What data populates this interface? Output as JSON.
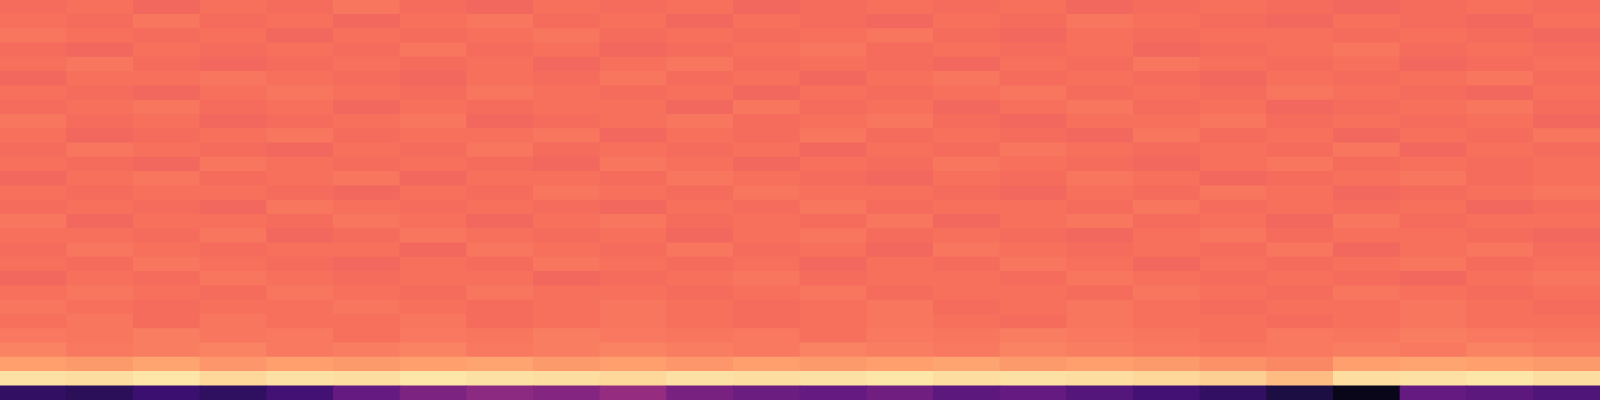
{
  "chart_data": {
    "type": "heatmap",
    "tick_labels": false,
    "grid": false,
    "cells": [
      [
        0.69,
        0.7,
        0.68,
        0.7,
        0.69,
        0.71,
        0.69,
        0.68,
        0.7,
        0.69,
        0.7,
        0.68,
        0.69,
        0.7,
        0.69,
        0.7,
        0.68,
        0.69,
        0.7,
        0.69,
        0.68,
        0.69,
        0.7,
        0.69
      ],
      [
        0.7,
        0.69,
        0.71,
        0.69,
        0.7,
        0.68,
        0.7,
        0.71,
        0.69,
        0.7,
        0.68,
        0.7,
        0.69,
        0.68,
        0.7,
        0.69,
        0.71,
        0.7,
        0.69,
        0.68,
        0.7,
        0.69,
        0.68,
        0.7
      ],
      [
        0.71,
        0.7,
        0.69,
        0.7,
        0.68,
        0.7,
        0.69,
        0.7,
        0.71,
        0.69,
        0.7,
        0.69,
        0.7,
        0.71,
        0.69,
        0.68,
        0.7,
        0.69,
        0.7,
        0.7,
        0.69,
        0.7,
        0.69,
        0.68
      ],
      [
        0.69,
        0.68,
        0.7,
        0.69,
        0.7,
        0.69,
        0.71,
        0.69,
        0.7,
        0.68,
        0.69,
        0.7,
        0.71,
        0.69,
        0.7,
        0.69,
        0.7,
        0.68,
        0.69,
        0.7,
        0.71,
        0.69,
        0.7,
        0.69
      ],
      [
        0.7,
        0.71,
        0.69,
        0.68,
        0.69,
        0.7,
        0.69,
        0.7,
        0.68,
        0.7,
        0.71,
        0.69,
        0.7,
        0.69,
        0.68,
        0.7,
        0.69,
        0.71,
        0.7,
        0.69,
        0.7,
        0.68,
        0.69,
        0.7
      ],
      [
        0.68,
        0.7,
        0.7,
        0.71,
        0.7,
        0.69,
        0.68,
        0.7,
        0.69,
        0.71,
        0.69,
        0.7,
        0.68,
        0.7,
        0.71,
        0.69,
        0.7,
        0.69,
        0.68,
        0.7,
        0.69,
        0.7,
        0.71,
        0.69
      ],
      [
        0.7,
        0.69,
        0.68,
        0.7,
        0.71,
        0.7,
        0.69,
        0.71,
        0.7,
        0.69,
        0.7,
        0.68,
        0.7,
        0.69,
        0.7,
        0.71,
        0.69,
        0.7,
        0.69,
        0.71,
        0.7,
        0.69,
        0.68,
        0.7
      ],
      [
        0.69,
        0.7,
        0.71,
        0.69,
        0.7,
        0.68,
        0.7,
        0.69,
        0.7,
        0.7,
        0.68,
        0.71,
        0.69,
        0.7,
        0.68,
        0.7,
        0.71,
        0.69,
        0.7,
        0.68,
        0.69,
        0.7,
        0.71,
        0.69
      ],
      [
        0.71,
        0.69,
        0.7,
        0.68,
        0.69,
        0.7,
        0.71,
        0.68,
        0.69,
        0.7,
        0.71,
        0.69,
        0.7,
        0.71,
        0.69,
        0.68,
        0.7,
        0.7,
        0.71,
        0.69,
        0.7,
        0.69,
        0.7,
        0.68
      ],
      [
        0.7,
        0.68,
        0.69,
        0.7,
        0.71,
        0.69,
        0.7,
        0.7,
        0.71,
        0.68,
        0.7,
        0.69,
        0.71,
        0.69,
        0.7,
        0.69,
        0.68,
        0.71,
        0.69,
        0.7,
        0.68,
        0.7,
        0.69,
        0.71
      ],
      [
        0.69,
        0.71,
        0.7,
        0.69,
        0.68,
        0.7,
        0.69,
        0.71,
        0.69,
        0.7,
        0.69,
        0.7,
        0.68,
        0.7,
        0.69,
        0.71,
        0.7,
        0.69,
        0.7,
        0.69,
        0.71,
        0.68,
        0.7,
        0.69
      ],
      [
        0.7,
        0.69,
        0.68,
        0.71,
        0.7,
        0.69,
        0.7,
        0.69,
        0.68,
        0.71,
        0.7,
        0.68,
        0.7,
        0.69,
        0.71,
        0.7,
        0.69,
        0.68,
        0.7,
        0.71,
        0.69,
        0.7,
        0.69,
        0.7
      ],
      [
        0.68,
        0.7,
        0.71,
        0.69,
        0.7,
        0.71,
        0.68,
        0.7,
        0.7,
        0.69,
        0.71,
        0.7,
        0.69,
        0.68,
        0.7,
        0.69,
        0.71,
        0.7,
        0.68,
        0.69,
        0.7,
        0.71,
        0.69,
        0.7
      ],
      [
        0.7,
        0.69,
        0.7,
        0.7,
        0.69,
        0.68,
        0.7,
        0.69,
        0.71,
        0.7,
        0.69,
        0.71,
        0.7,
        0.7,
        0.69,
        0.68,
        0.7,
        0.69,
        0.71,
        0.7,
        0.68,
        0.69,
        0.7,
        0.71
      ],
      [
        0.69,
        0.7,
        0.69,
        0.68,
        0.71,
        0.7,
        0.69,
        0.7,
        0.69,
        0.68,
        0.7,
        0.69,
        0.71,
        0.69,
        0.7,
        0.7,
        0.69,
        0.71,
        0.69,
        0.7,
        0.69,
        0.7,
        0.68,
        0.69
      ],
      [
        0.71,
        0.68,
        0.7,
        0.7,
        0.69,
        0.71,
        0.7,
        0.68,
        0.7,
        0.71,
        0.69,
        0.7,
        0.69,
        0.71,
        0.68,
        0.7,
        0.71,
        0.69,
        0.7,
        0.68,
        0.71,
        0.69,
        0.7,
        0.7
      ],
      [
        0.7,
        0.7,
        0.69,
        0.71,
        0.68,
        0.69,
        0.71,
        0.7,
        0.69,
        0.7,
        0.68,
        0.7,
        0.71,
        0.69,
        0.7,
        0.69,
        0.68,
        0.7,
        0.71,
        0.69,
        0.7,
        0.7,
        0.69,
        0.68
      ],
      [
        0.69,
        0.71,
        0.7,
        0.69,
        0.7,
        0.7,
        0.68,
        0.71,
        0.7,
        0.69,
        0.71,
        0.69,
        0.7,
        0.68,
        0.71,
        0.7,
        0.69,
        0.7,
        0.69,
        0.71,
        0.68,
        0.7,
        0.71,
        0.69
      ],
      [
        0.7,
        0.69,
        0.71,
        0.7,
        0.69,
        0.68,
        0.7,
        0.69,
        0.71,
        0.7,
        0.69,
        0.7,
        0.68,
        0.7,
        0.69,
        0.71,
        0.7,
        0.68,
        0.7,
        0.69,
        0.7,
        0.71,
        0.69,
        0.7
      ],
      [
        0.68,
        0.7,
        0.69,
        0.71,
        0.7,
        0.69,
        0.7,
        0.7,
        0.68,
        0.69,
        0.7,
        0.71,
        0.69,
        0.7,
        0.7,
        0.69,
        0.71,
        0.7,
        0.69,
        0.7,
        0.69,
        0.68,
        0.7,
        0.71
      ],
      [
        0.7,
        0.71,
        0.7,
        0.69,
        0.71,
        0.7,
        0.69,
        0.71,
        0.7,
        0.7,
        0.69,
        0.7,
        0.71,
        0.69,
        0.7,
        0.7,
        0.69,
        0.71,
        0.7,
        0.69,
        0.71,
        0.7,
        0.69,
        0.7
      ],
      [
        0.71,
        0.7,
        0.69,
        0.7,
        0.7,
        0.71,
        0.7,
        0.69,
        0.7,
        0.71,
        0.7,
        0.69,
        0.7,
        0.71,
        0.69,
        0.7,
        0.71,
        0.7,
        0.69,
        0.7,
        0.7,
        0.71,
        0.7,
        0.69
      ],
      [
        0.7,
        0.71,
        0.69,
        0.71,
        0.7,
        0.7,
        0.71,
        0.69,
        0.7,
        0.71,
        0.7,
        0.69,
        0.7,
        0.71,
        0.7,
        0.69,
        0.71,
        0.7,
        0.7,
        0.69,
        0.7,
        0.71,
        0.7,
        0.7
      ],
      [
        0.72,
        0.71,
        0.73,
        0.71,
        0.72,
        0.7,
        0.72,
        0.71,
        0.73,
        0.72,
        0.71,
        0.72,
        0.7,
        0.72,
        0.71,
        0.73,
        0.72,
        0.71,
        0.7,
        0.72,
        0.71,
        0.73,
        0.72,
        0.71
      ],
      [
        0.74,
        0.72,
        0.73,
        0.74,
        0.72,
        0.73,
        0.74,
        0.72,
        0.73,
        0.74,
        0.73,
        0.72,
        0.74,
        0.73,
        0.72,
        0.74,
        0.73,
        0.72,
        0.71,
        0.72,
        0.73,
        0.72,
        0.74,
        0.73
      ],
      [
        0.8,
        0.79,
        0.81,
        0.78,
        0.8,
        0.79,
        0.8,
        0.81,
        0.79,
        0.8,
        0.78,
        0.8,
        0.79,
        0.8,
        0.81,
        0.79,
        0.8,
        0.79,
        0.77,
        0.75,
        0.8,
        0.81,
        0.8,
        0.79
      ],
      [
        0.94,
        0.93,
        0.95,
        0.92,
        0.94,
        0.93,
        0.95,
        0.94,
        0.93,
        0.92,
        0.94,
        0.93,
        0.94,
        0.95,
        0.93,
        0.94,
        0.93,
        0.92,
        0.9,
        0.86,
        0.93,
        0.94,
        0.95,
        0.93
      ],
      [
        0.18,
        0.16,
        0.2,
        0.17,
        0.22,
        0.3,
        0.36,
        0.4,
        0.38,
        0.42,
        0.35,
        0.32,
        0.3,
        0.33,
        0.28,
        0.3,
        0.26,
        0.22,
        0.18,
        0.12,
        0.04,
        0.3,
        0.28,
        0.25
      ]
    ]
  }
}
